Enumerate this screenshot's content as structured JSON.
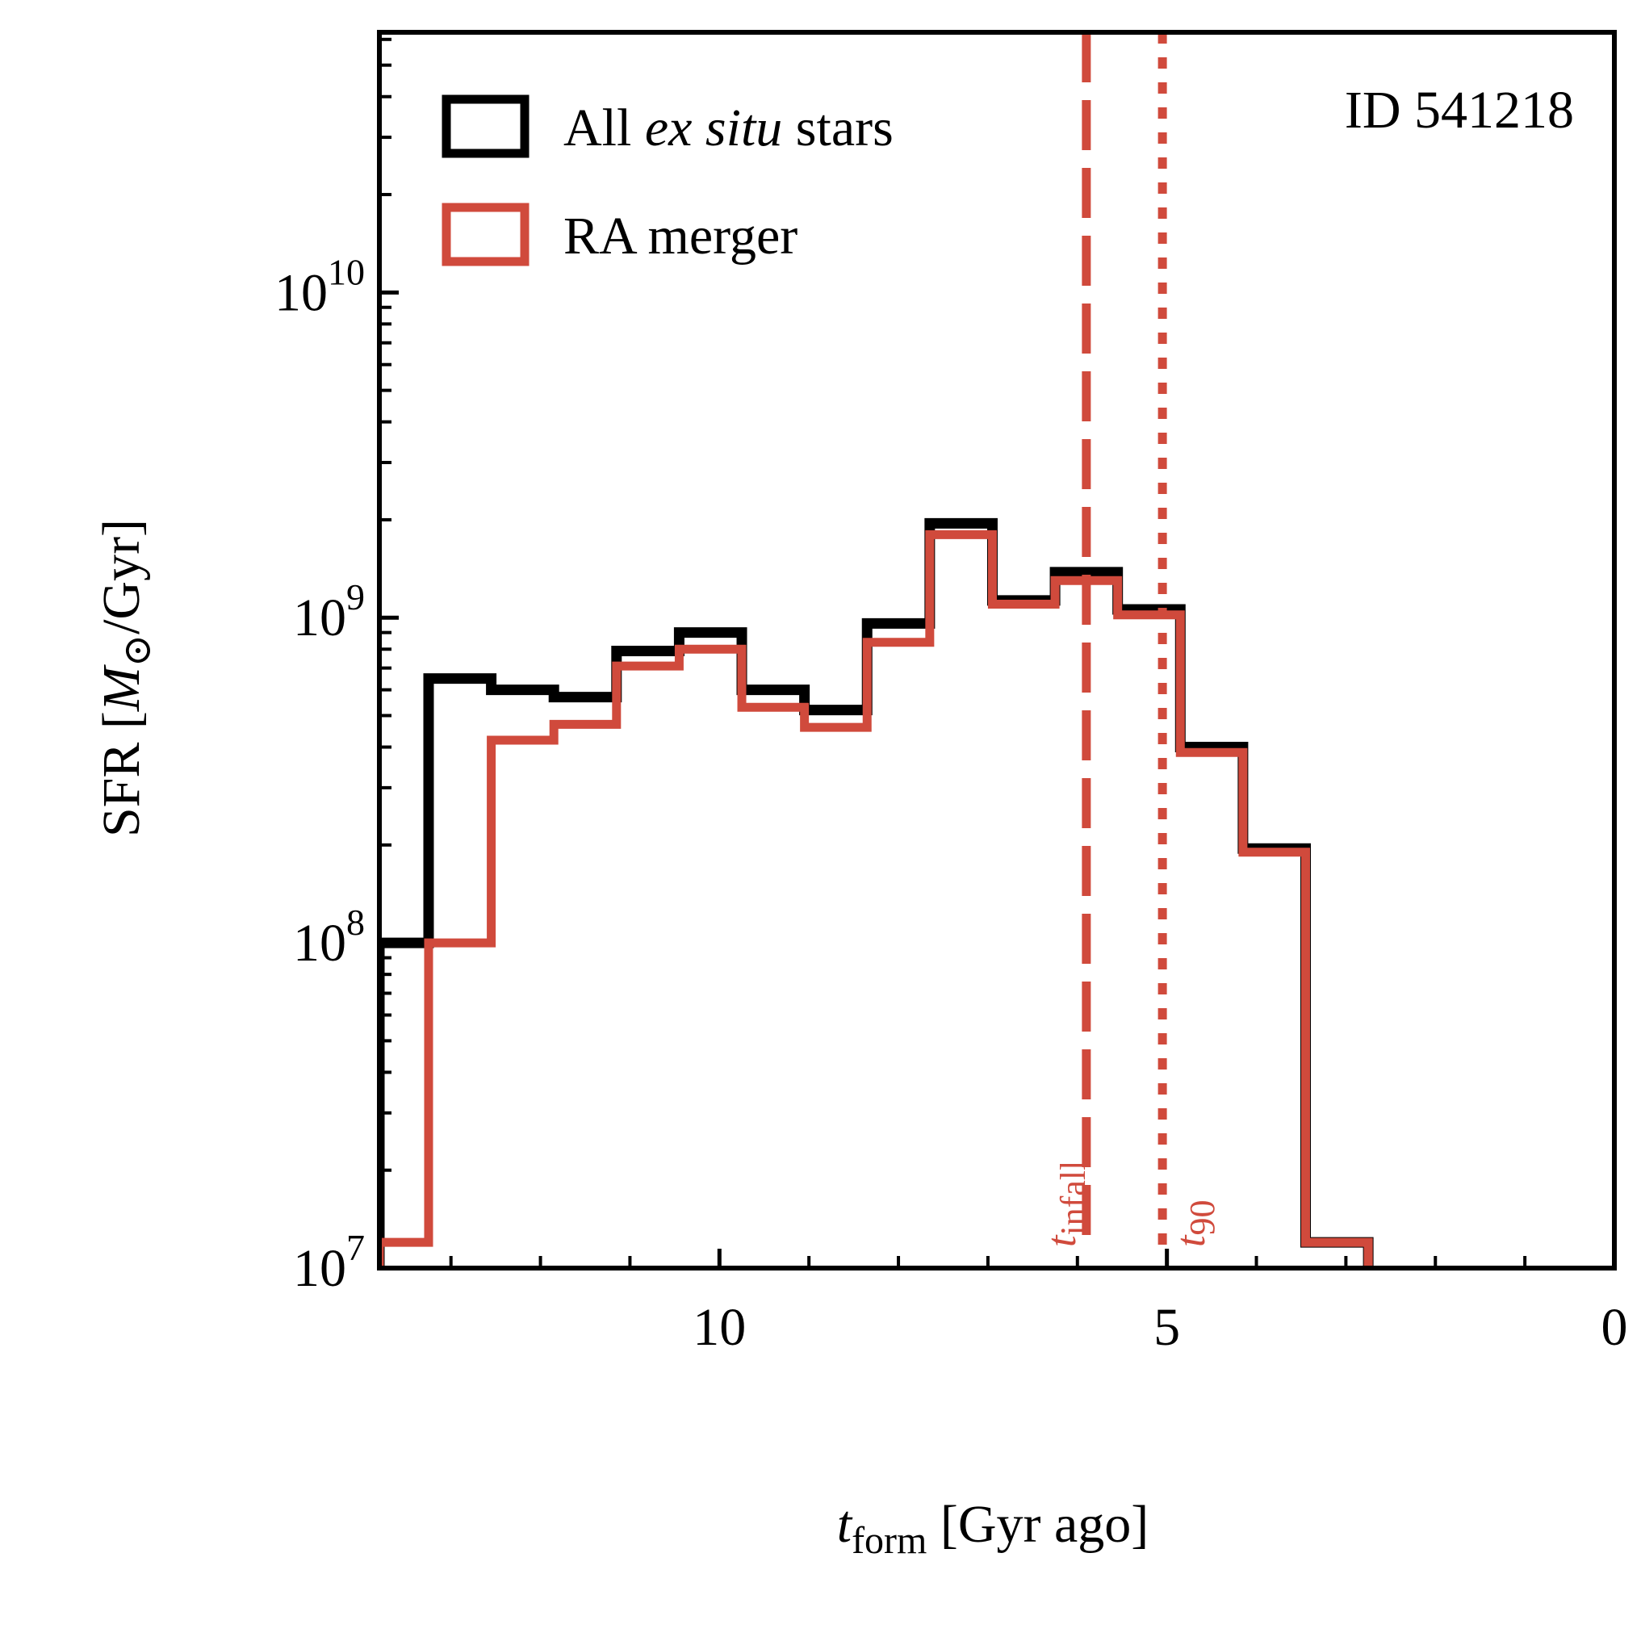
{
  "chart_data": {
    "type": "step-histogram",
    "title": "",
    "annotation": "ID 541218",
    "xlabel": {
      "main": "t",
      "sub": "form",
      "rest": " [Gyr ago]"
    },
    "ylabel": "SFR [M⊙/Gyr]",
    "xlim": [
      13.8,
      0
    ],
    "ylim_log10": [
      7,
      10.8
    ],
    "yscale": "log",
    "x_ticks": [
      10,
      5,
      0
    ],
    "x_tick_labels": [
      "10",
      "5",
      "0"
    ],
    "x_minor_ticks": [
      13,
      12,
      11,
      9,
      8,
      7,
      6,
      4,
      3,
      2,
      1
    ],
    "y_ticks": [
      {
        "exp": 7,
        "label": "7"
      },
      {
        "exp": 8,
        "label": "8"
      },
      {
        "exp": 9,
        "label": "9"
      },
      {
        "exp": 10,
        "label": "10"
      }
    ],
    "bin_edges": [
      13.8,
      13.25,
      12.55,
      11.85,
      11.15,
      10.45,
      9.75,
      9.05,
      8.35,
      7.65,
      6.95,
      6.25,
      5.55,
      4.85,
      4.15,
      3.45,
      2.75
    ],
    "series": [
      {
        "name": "All ex situ stars",
        "color": "#000000",
        "values": [
          100000000.0,
          650000000.0,
          600000000.0,
          570000000.0,
          790000000.0,
          900000000.0,
          600000000.0,
          520000000.0,
          960000000.0,
          1950000000.0,
          1130000000.0,
          1380000000.0,
          1060000000.0,
          400000000.0,
          195000000.0,
          12000000.0
        ]
      },
      {
        "name": "RA merger",
        "color": "#d04a3c",
        "values": [
          12000000.0,
          100000000.0,
          420000000.0,
          470000000.0,
          710000000.0,
          800000000.0,
          530000000.0,
          460000000.0,
          840000000.0,
          1800000000.0,
          1100000000.0,
          1300000000.0,
          1020000000.0,
          385000000.0,
          190000000.0,
          12000000.0
        ]
      }
    ],
    "vlines": [
      {
        "name": "t_infall",
        "x": 5.9,
        "style": "dashed",
        "color": "#d04a3c",
        "label_main": "t",
        "label_sub": "infall"
      },
      {
        "name": "t_90",
        "x": 5.05,
        "style": "dotted",
        "color": "#d04a3c",
        "label_main": "t",
        "label_sub": "90"
      }
    ],
    "legend": {
      "position": "top-left",
      "entries": [
        {
          "prefix": "All ",
          "italic": "ex situ",
          "suffix": " stars",
          "color": "#000000"
        },
        {
          "prefix": "RA merger",
          "italic": "",
          "suffix": "",
          "color": "#d04a3c"
        }
      ]
    }
  }
}
